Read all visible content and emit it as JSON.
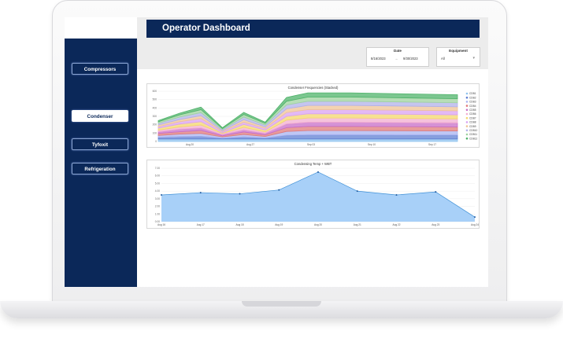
{
  "app": {
    "title": "Operator Dashboard"
  },
  "sidebar": {
    "items": [
      {
        "label": "Compressors",
        "active": false
      },
      {
        "label": "Condenser",
        "active": true
      },
      {
        "label": "Tyfoxit",
        "active": false
      },
      {
        "label": "Refrigeration",
        "active": false
      }
    ]
  },
  "filters": {
    "date": {
      "label": "Date",
      "start": "8/16/2023",
      "end": "9/30/2023"
    },
    "equipment": {
      "label": "Equipment",
      "value": "All"
    }
  },
  "colors": {
    "navy": "#0b2859",
    "area_fill": "#9ecbf7",
    "area_line": "#3d8fd6"
  },
  "chart_data": [
    {
      "type": "area",
      "title": "Condenser Frequencies (Stacked)",
      "stacked": true,
      "x_ticks": [
        "Aug 20",
        "Aug 27",
        "Sep 03",
        "Sep 10",
        "Sep 17"
      ],
      "y_ticks": [
        "0",
        "100",
        "200",
        "300",
        "400",
        "500",
        "600"
      ],
      "ylim": [
        0,
        600
      ],
      "legend_position": "right",
      "x": [
        16,
        17,
        18,
        19,
        20,
        21,
        22,
        23,
        24,
        25,
        30
      ],
      "series": [
        {
          "name": "CDB1",
          "color": "#8fc3ef",
          "values": [
            30,
            30,
            30,
            30,
            30,
            30,
            30,
            30,
            30,
            30,
            30
          ]
        },
        {
          "name": "CDB2",
          "color": "#5f7fd3",
          "values": [
            20,
            28,
            32,
            10,
            25,
            12,
            45,
            50,
            50,
            50,
            48
          ]
        },
        {
          "name": "CDB3",
          "color": "#a9b4f2",
          "values": [
            22,
            30,
            34,
            15,
            28,
            18,
            45,
            50,
            50,
            50,
            48
          ]
        },
        {
          "name": "CDB4",
          "color": "#e07a7a",
          "values": [
            24,
            28,
            36,
            12,
            30,
            20,
            45,
            50,
            50,
            50,
            48
          ]
        },
        {
          "name": "CDB5",
          "color": "#c86fc8",
          "values": [
            20,
            32,
            30,
            16,
            26,
            18,
            45,
            50,
            50,
            50,
            48
          ]
        },
        {
          "name": "CDB6",
          "color": "#f3aed0",
          "values": [
            18,
            26,
            34,
            12,
            30,
            16,
            45,
            50,
            50,
            50,
            48
          ]
        },
        {
          "name": "CDB7",
          "color": "#f4d86e",
          "values": [
            25,
            34,
            40,
            10,
            35,
            22,
            45,
            50,
            50,
            50,
            48
          ]
        },
        {
          "name": "CDB8",
          "color": "#d9a2f2",
          "values": [
            18,
            28,
            38,
            14,
            26,
            20,
            45,
            50,
            50,
            50,
            48
          ]
        },
        {
          "name": "CDB9",
          "color": "#f0c497",
          "values": [
            20,
            26,
            34,
            10,
            30,
            18,
            45,
            50,
            50,
            50,
            48
          ]
        },
        {
          "name": "CDB10",
          "color": "#b1b1ea",
          "values": [
            20,
            30,
            36,
            14,
            32,
            22,
            45,
            50,
            50,
            50,
            48
          ]
        },
        {
          "name": "CDB11",
          "color": "#9fd39f",
          "values": [
            18,
            26,
            36,
            12,
            30,
            20,
            45,
            50,
            50,
            50,
            48
          ]
        },
        {
          "name": "CDB12",
          "color": "#4fb36a",
          "values": [
            15,
            20,
            30,
            10,
            25,
            15,
            45,
            50,
            50,
            50,
            48
          ]
        }
      ]
    },
    {
      "type": "area",
      "title": "Condensing Temp + WBT",
      "x": [
        "Aug 16",
        "Aug 17",
        "Aug 18",
        "Aug 19",
        "Aug 20",
        "Aug 21",
        "Aug 22",
        "Aug 23",
        "Aug 24"
      ],
      "y_ticks": [
        "0.00",
        "1.00",
        "2.00",
        "3.00",
        "4.00",
        "5.00",
        "6.00",
        "7.00"
      ],
      "ylim": [
        0,
        7
      ],
      "values": [
        3.5,
        3.8,
        3.65,
        4.15,
        6.5,
        4.0,
        3.5,
        3.9,
        0.6
      ]
    }
  ]
}
